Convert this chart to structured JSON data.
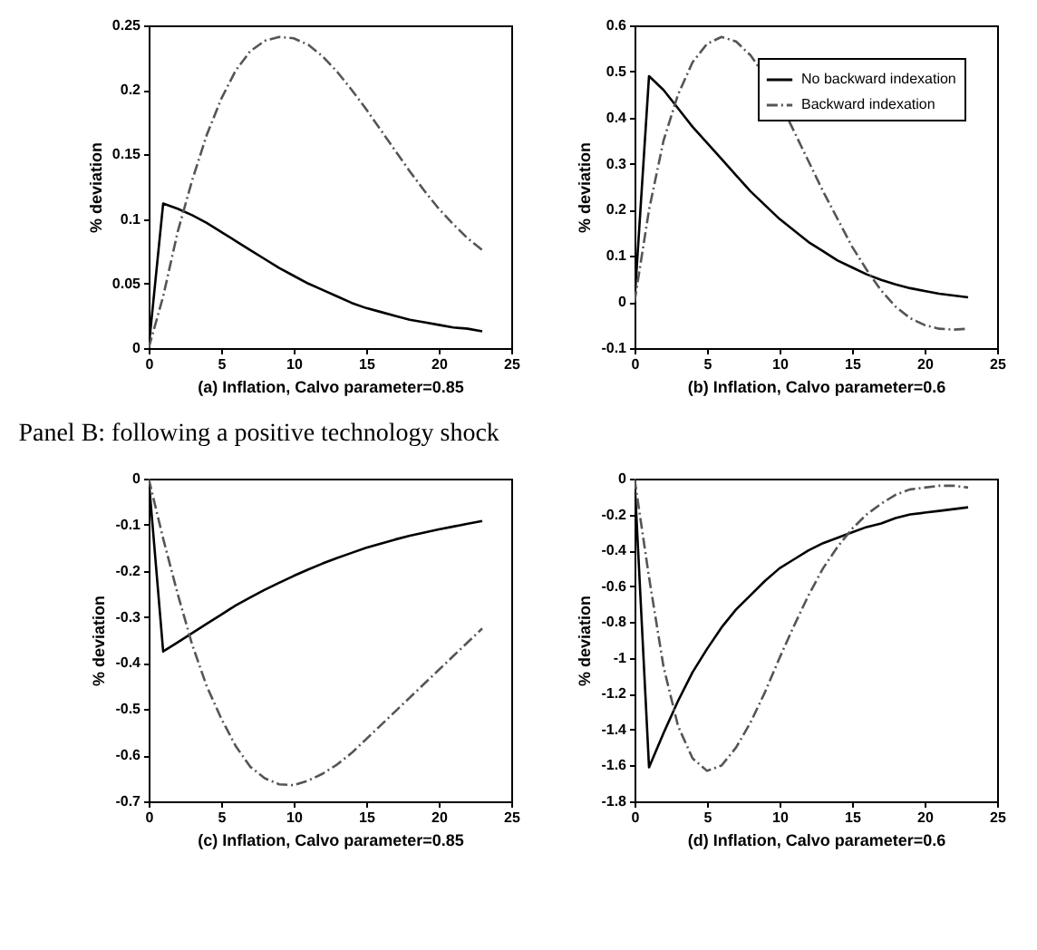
{
  "chart_data": [
    {
      "type": "line",
      "xlabel": "(a) Inflation, Calvo parameter=0.85",
      "ylabel": "% deviation",
      "xlim": [
        0,
        25
      ],
      "xticks": [
        0,
        5,
        10,
        15,
        20,
        25
      ],
      "ylim": [
        0,
        0.25
      ],
      "yticks": [
        0,
        0.05,
        0.1,
        0.15,
        0.2,
        0.25
      ],
      "x": [
        0,
        1,
        2,
        3,
        4,
        5,
        6,
        7,
        8,
        9,
        10,
        11,
        12,
        13,
        14,
        15,
        16,
        17,
        18,
        19,
        20,
        21,
        22,
        23
      ],
      "series": [
        {
          "color": "#000000",
          "line_style": "solid",
          "values": [
            0,
            0.112,
            0.108,
            0.103,
            0.097,
            0.09,
            0.083,
            0.076,
            0.069,
            0.062,
            0.056,
            0.05,
            0.045,
            0.04,
            0.035,
            0.031,
            0.028,
            0.025,
            0.022,
            0.02,
            0.018,
            0.016,
            0.015,
            0.013
          ]
        },
        {
          "color": "#555555",
          "line_style": "dashed",
          "values": [
            0,
            0.04,
            0.09,
            0.13,
            0.165,
            0.193,
            0.215,
            0.23,
            0.238,
            0.241,
            0.24,
            0.235,
            0.226,
            0.214,
            0.2,
            0.185,
            0.169,
            0.153,
            0.137,
            0.122,
            0.108,
            0.096,
            0.085,
            0.076
          ]
        }
      ]
    },
    {
      "type": "line",
      "xlabel": "(b) Inflation, Calvo parameter=0.6",
      "ylabel": "% deviation",
      "legend": "top right",
      "xlim": [
        0,
        25
      ],
      "xticks": [
        0,
        5,
        10,
        15,
        20,
        25
      ],
      "ylim": [
        -0.1,
        0.6
      ],
      "yticks": [
        -0.1,
        0,
        0.1,
        0.2,
        0.3,
        0.4,
        0.5,
        0.6
      ],
      "x": [
        0,
        1,
        2,
        3,
        4,
        5,
        6,
        7,
        8,
        9,
        10,
        11,
        12,
        13,
        14,
        15,
        16,
        17,
        18,
        19,
        20,
        21,
        22,
        23
      ],
      "series": [
        {
          "name": "No backward indexation",
          "color": "#000000",
          "line_style": "solid",
          "values": [
            0,
            0.49,
            0.46,
            0.42,
            0.38,
            0.345,
            0.31,
            0.275,
            0.24,
            0.21,
            0.18,
            0.155,
            0.13,
            0.11,
            0.09,
            0.075,
            0.06,
            0.048,
            0.038,
            0.03,
            0.024,
            0.018,
            0.014,
            0.01
          ]
        },
        {
          "name": "Backward indexation",
          "color": "#555555",
          "line_style": "dashed",
          "values": [
            0,
            0.2,
            0.35,
            0.45,
            0.52,
            0.56,
            0.575,
            0.565,
            0.535,
            0.49,
            0.435,
            0.37,
            0.305,
            0.24,
            0.18,
            0.12,
            0.07,
            0.025,
            -0.01,
            -0.035,
            -0.05,
            -0.058,
            -0.06,
            -0.058
          ]
        }
      ]
    },
    {
      "type": "line",
      "title": "Panel B: following a positive technology shock",
      "xlabel": "(c) Inflation, Calvo parameter=0.85",
      "ylabel": "% deviation",
      "xlim": [
        0,
        25
      ],
      "xticks": [
        0,
        5,
        10,
        15,
        20,
        25
      ],
      "ylim": [
        -0.7,
        0
      ],
      "yticks": [
        -0.7,
        -0.6,
        -0.5,
        -0.4,
        -0.3,
        -0.2,
        -0.1,
        0
      ],
      "x": [
        0,
        1,
        2,
        3,
        4,
        5,
        6,
        7,
        8,
        9,
        10,
        11,
        12,
        13,
        14,
        15,
        16,
        17,
        18,
        19,
        20,
        21,
        22,
        23
      ],
      "series": [
        {
          "color": "#000000",
          "line_style": "solid",
          "values": [
            0,
            -0.375,
            -0.355,
            -0.335,
            -0.315,
            -0.295,
            -0.275,
            -0.258,
            -0.241,
            -0.226,
            -0.211,
            -0.197,
            -0.184,
            -0.172,
            -0.161,
            -0.15,
            -0.141,
            -0.132,
            -0.124,
            -0.117,
            -0.11,
            -0.104,
            -0.098,
            -0.092
          ]
        },
        {
          "color": "#555555",
          "line_style": "dashed",
          "values": [
            0,
            -0.13,
            -0.25,
            -0.36,
            -0.45,
            -0.52,
            -0.58,
            -0.625,
            -0.65,
            -0.663,
            -0.665,
            -0.655,
            -0.64,
            -0.62,
            -0.595,
            -0.565,
            -0.535,
            -0.505,
            -0.475,
            -0.445,
            -0.415,
            -0.385,
            -0.355,
            -0.325
          ]
        }
      ]
    },
    {
      "type": "line",
      "xlabel": "(d) Inflation, Calvo parameter=0.6",
      "ylabel": "% deviation",
      "xlim": [
        0,
        25
      ],
      "xticks": [
        0,
        5,
        10,
        15,
        20,
        25
      ],
      "ylim": [
        -1.8,
        0
      ],
      "yticks": [
        -1.8,
        -1.6,
        -1.4,
        -1.2,
        -1,
        -0.8,
        -0.6,
        -0.4,
        -0.2,
        0
      ],
      "x": [
        0,
        1,
        2,
        3,
        4,
        5,
        6,
        7,
        8,
        9,
        10,
        11,
        12,
        13,
        14,
        15,
        16,
        17,
        18,
        19,
        20,
        21,
        22,
        23
      ],
      "series": [
        {
          "color": "#000000",
          "line_style": "solid",
          "values": [
            0,
            -1.61,
            -1.42,
            -1.24,
            -1.08,
            -0.95,
            -0.83,
            -0.73,
            -0.65,
            -0.57,
            -0.5,
            -0.45,
            -0.4,
            -0.36,
            -0.33,
            -0.3,
            -0.27,
            -0.25,
            -0.22,
            -0.2,
            -0.19,
            -0.18,
            -0.17,
            -0.16
          ]
        },
        {
          "color": "#555555",
          "line_style": "dashed",
          "values": [
            0,
            -0.55,
            -1.05,
            -1.38,
            -1.56,
            -1.63,
            -1.6,
            -1.5,
            -1.36,
            -1.19,
            -1,
            -0.82,
            -0.65,
            -0.5,
            -0.38,
            -0.28,
            -0.2,
            -0.14,
            -0.09,
            -0.06,
            -0.05,
            -0.04,
            -0.04,
            -0.05
          ]
        }
      ]
    }
  ]
}
